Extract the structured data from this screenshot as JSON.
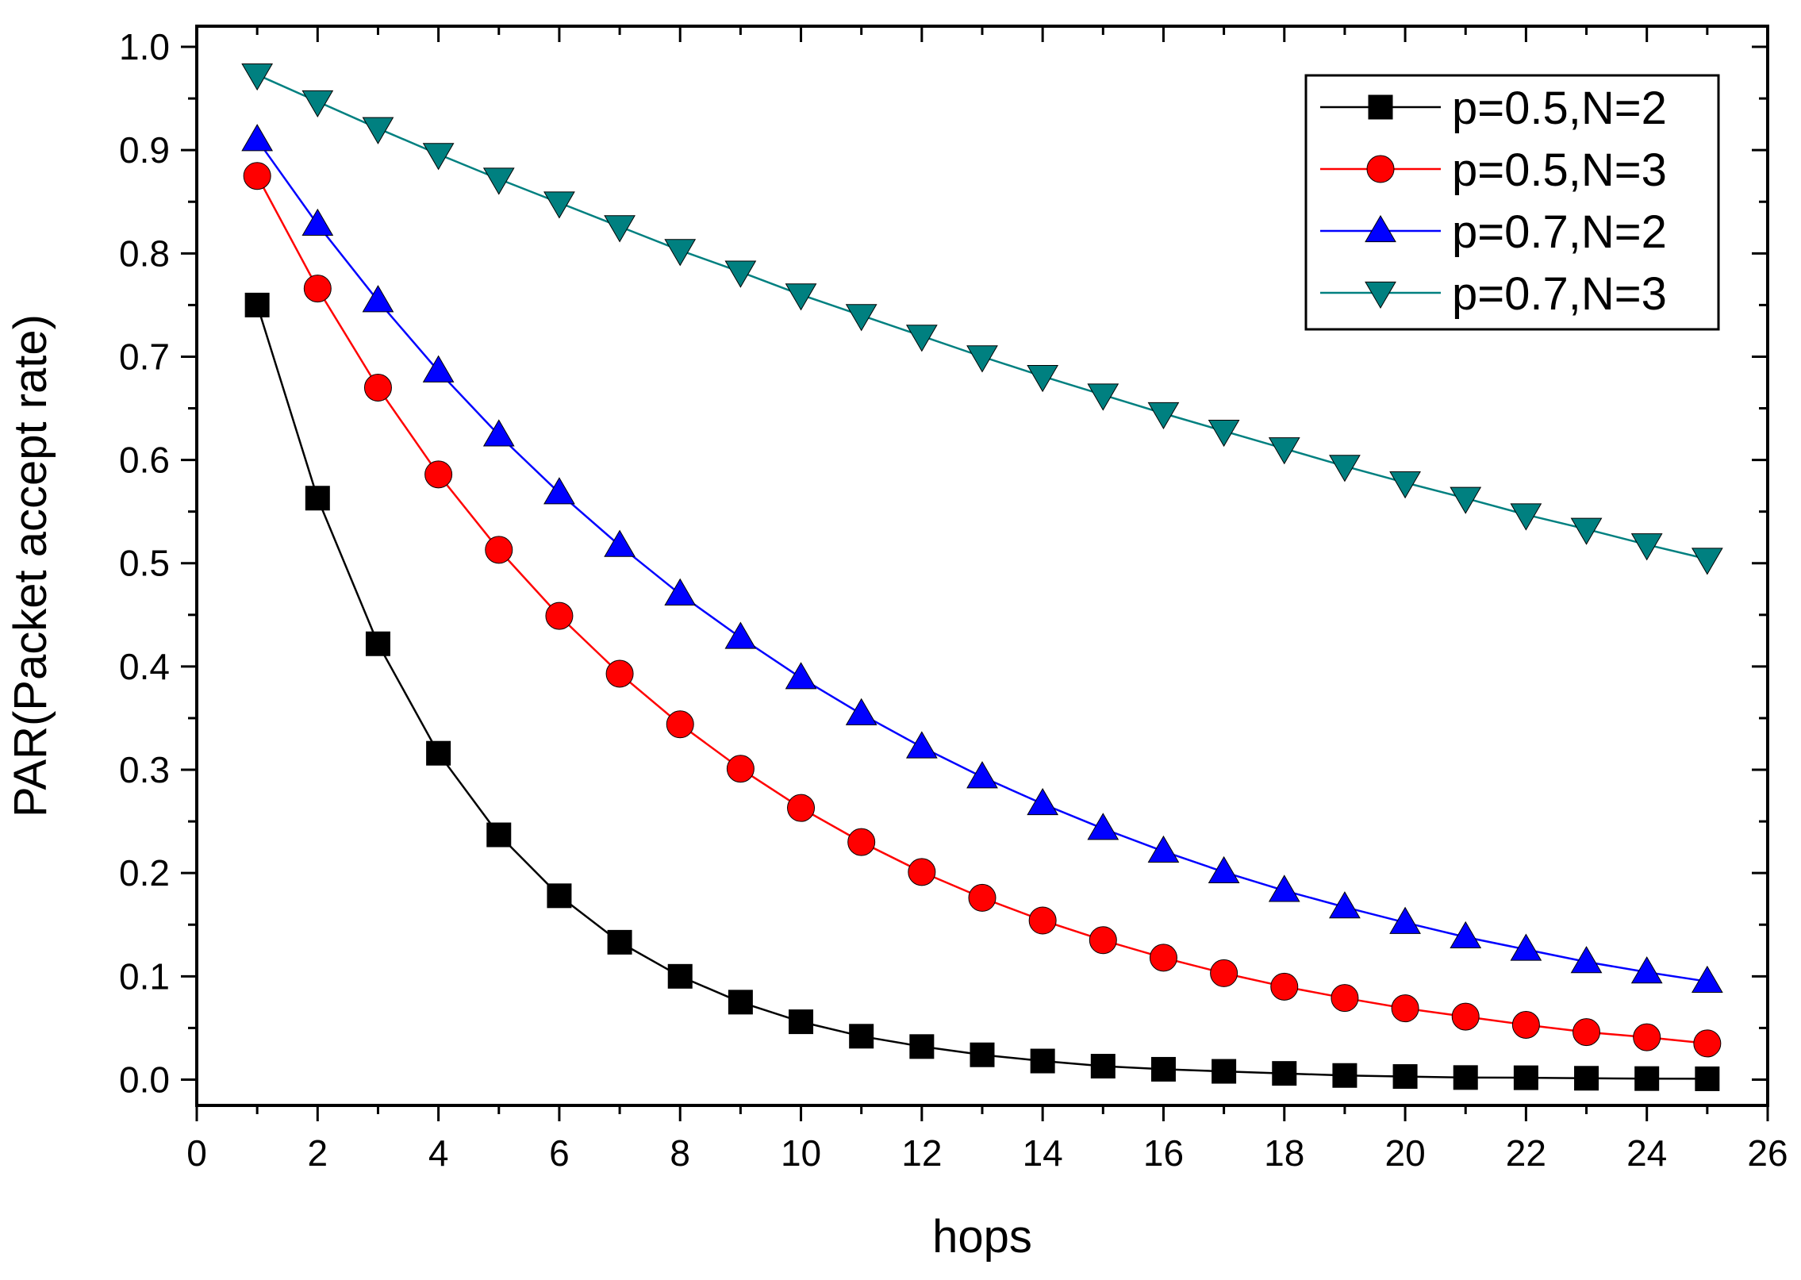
{
  "chart_data": {
    "type": "line",
    "title": "",
    "xlabel": "hops",
    "ylabel": "PAR(Packet accept rate)",
    "xlim": [
      0,
      26
    ],
    "ylim": [
      -0.025,
      1.02
    ],
    "x_ticks": [
      0,
      2,
      4,
      6,
      8,
      10,
      12,
      14,
      16,
      18,
      20,
      22,
      24,
      26
    ],
    "x_tick_labels": [
      "0",
      "2",
      "4",
      "6",
      "8",
      "10",
      "12",
      "14",
      "16",
      "18",
      "20",
      "22",
      "24",
      "26"
    ],
    "y_ticks": [
      0.0,
      0.1,
      0.2,
      0.3,
      0.4,
      0.5,
      0.6,
      0.7,
      0.8,
      0.9,
      1.0
    ],
    "y_tick_labels": [
      "0.0",
      "0.1",
      "0.2",
      "0.3",
      "0.4",
      "0.5",
      "0.6",
      "0.7",
      "0.8",
      "0.9",
      "1.0"
    ],
    "grid": false,
    "legend_position": "top-right",
    "x": [
      1,
      2,
      3,
      4,
      5,
      6,
      7,
      8,
      9,
      10,
      11,
      12,
      13,
      14,
      15,
      16,
      17,
      18,
      19,
      20,
      21,
      22,
      23,
      24,
      25
    ],
    "series": [
      {
        "name": "p=0.5,N=2",
        "color": "#000000",
        "marker": "square",
        "values": [
          0.75,
          0.563,
          0.422,
          0.316,
          0.237,
          0.178,
          0.133,
          0.1,
          0.075,
          0.056,
          0.042,
          0.032,
          0.024,
          0.018,
          0.013,
          0.01,
          0.008,
          0.006,
          0.004,
          0.003,
          0.002,
          0.0018,
          0.0013,
          0.001,
          0.0008
        ]
      },
      {
        "name": "p=0.5,N=3",
        "color": "#ff0000",
        "marker": "circle",
        "values": [
          0.875,
          0.766,
          0.67,
          0.586,
          0.513,
          0.449,
          0.393,
          0.344,
          0.301,
          0.263,
          0.23,
          0.201,
          0.176,
          0.154,
          0.135,
          0.118,
          0.103,
          0.09,
          0.079,
          0.069,
          0.061,
          0.053,
          0.046,
          0.041,
          0.035
        ]
      },
      {
        "name": "p=0.7,N=2",
        "color": "#0000ff",
        "marker": "triangle-up",
        "values": [
          0.91,
          0.828,
          0.754,
          0.686,
          0.624,
          0.568,
          0.517,
          0.47,
          0.428,
          0.389,
          0.354,
          0.322,
          0.293,
          0.267,
          0.243,
          0.221,
          0.201,
          0.183,
          0.167,
          0.152,
          0.138,
          0.126,
          0.114,
          0.104,
          0.095
        ]
      },
      {
        "name": "p=0.7,N=3",
        "color": "#008080",
        "marker": "triangle-down",
        "values": [
          0.973,
          0.947,
          0.921,
          0.896,
          0.872,
          0.849,
          0.826,
          0.803,
          0.782,
          0.76,
          0.74,
          0.72,
          0.7,
          0.681,
          0.663,
          0.645,
          0.628,
          0.611,
          0.594,
          0.578,
          0.563,
          0.547,
          0.533,
          0.518,
          0.504
        ]
      }
    ]
  }
}
